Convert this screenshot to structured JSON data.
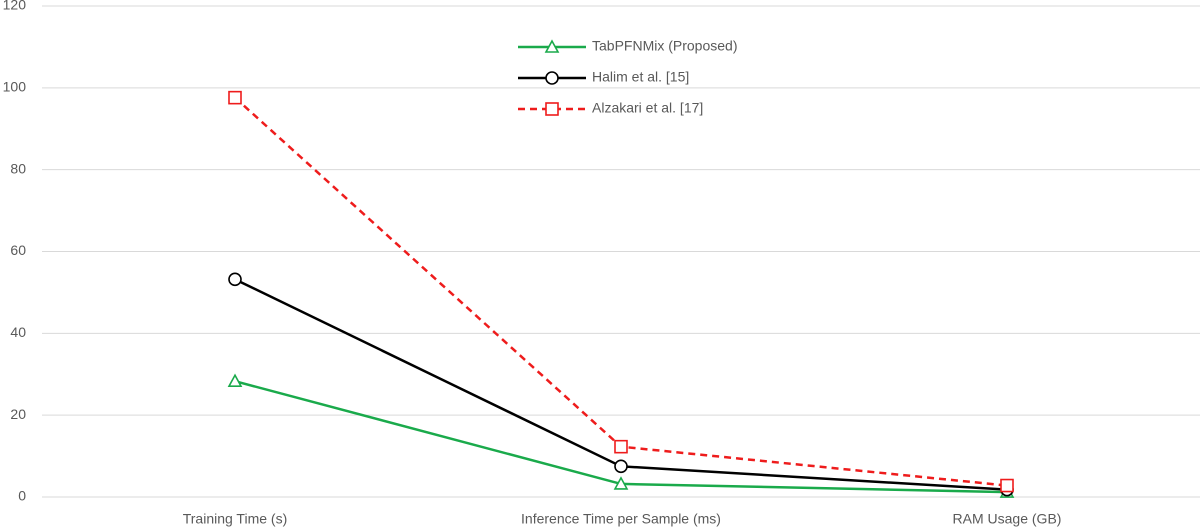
{
  "chart_data": {
    "type": "line",
    "categories": [
      "Training Time (s)",
      "Inference Time per Sample (ms)",
      "RAM Usage (GB)"
    ],
    "series": [
      {
        "name": "TabPFNMix (Proposed)",
        "color": "#1aaa4b",
        "marker": "triangle",
        "dash": false,
        "values": [
          28.3,
          3.2,
          1.2
        ]
      },
      {
        "name": "Halim et al. [15]",
        "color": "#000000",
        "marker": "circle",
        "dash": false,
        "values": [
          53.2,
          7.5,
          1.8
        ]
      },
      {
        "name": "Alzakari et al. [17]",
        "color": "#ee1c1c",
        "marker": "square",
        "dash": true,
        "values": [
          97.6,
          12.3,
          2.8
        ]
      }
    ],
    "ylim": [
      0,
      120
    ],
    "yticks": [
      0,
      20,
      40,
      60,
      80,
      100,
      120
    ],
    "grid": true
  }
}
